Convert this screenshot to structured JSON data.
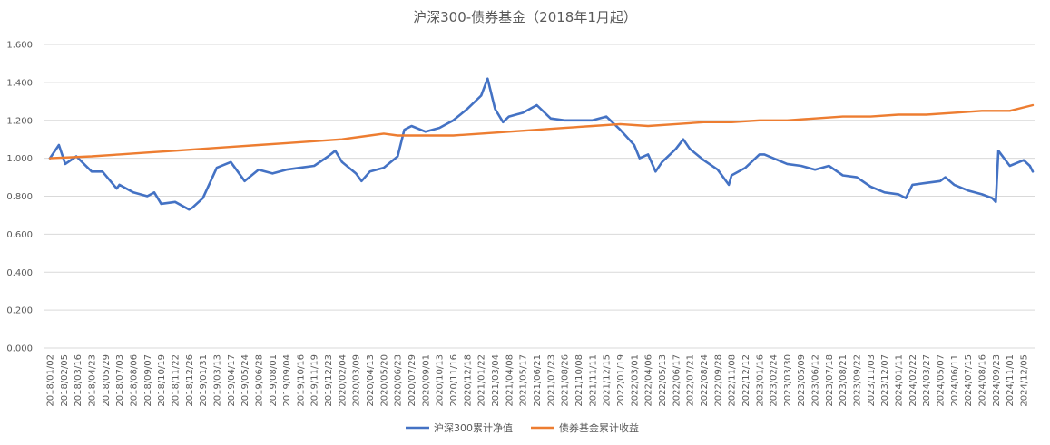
{
  "chart_data": {
    "type": "line",
    "title": "沪深300-债券基金（2018年1月起）",
    "xlabel": "",
    "ylabel": "",
    "ylim": [
      0,
      1.6
    ],
    "yticks": [
      0.0,
      0.2,
      0.4,
      0.6,
      0.8,
      1.0,
      1.2,
      1.4,
      1.6
    ],
    "ytick_labels": [
      "0.000",
      "0.200",
      "0.400",
      "0.600",
      "0.800",
      "1.000",
      "1.200",
      "1.400",
      "1.600"
    ],
    "grid": true,
    "legend_position": "bottom",
    "xtick_labels": [
      "2018/01/02",
      "2018/02/05",
      "2018/03/16",
      "2018/04/23",
      "2018/05/29",
      "2018/07/03",
      "2018/08/06",
      "2018/09/07",
      "2018/10/19",
      "2018/11/22",
      "2018/12/26",
      "2019/01/31",
      "2019/03/13",
      "2019/04/17",
      "2019/05/24",
      "2019/06/28",
      "2019/08/01",
      "2019/09/04",
      "2019/10/16",
      "2019/11/19",
      "2019/12/23",
      "2020/02/04",
      "2020/03/09",
      "2020/04/13",
      "2020/05/20",
      "2020/06/23",
      "2020/07/29",
      "2020/09/01",
      "2020/10/13",
      "2020/11/16",
      "2020/12/18",
      "2021/01/22",
      "2021/03/04",
      "2021/04/08",
      "2021/05/17",
      "2021/06/21",
      "2021/07/23",
      "2021/08/26",
      "2021/10/08",
      "2021/11/11",
      "2021/12/15",
      "2022/01/19",
      "2022/03/01",
      "2022/04/06",
      "2022/05/13",
      "2022/06/17",
      "2022/07/21",
      "2022/08/24",
      "2022/09/28",
      "2022/11/08",
      "2022/12/12",
      "2023/01/16",
      "2023/02/24",
      "2023/03/30",
      "2023/05/09",
      "2023/06/12",
      "2023/07/18",
      "2023/08/21",
      "2023/09/22",
      "2023/11/03",
      "2023/12/07",
      "2024/01/11",
      "2024/02/22",
      "2024/03/27",
      "2024/05/07",
      "2024/06/11",
      "2024/07/15",
      "2024/08/16",
      "2024/09/23",
      "2024/11/01",
      "2024/12/05"
    ],
    "series": [
      {
        "name": "沪深300累计净值",
        "color": "#4472c4",
        "x": [
          "2018/01/02",
          "2018/01/24",
          "2018/02/09",
          "2018/03/12",
          "2018/04/23",
          "2018/05/21",
          "2018/06/26",
          "2018/07/03",
          "2018/08/06",
          "2018/09/07",
          "2018/09/28",
          "2018/10/19",
          "2018/11/22",
          "2018/12/26",
          "2019/01/04",
          "2019/01/31",
          "2019/03/13",
          "2019/04/17",
          "2019/05/24",
          "2019/06/28",
          "2019/08/01",
          "2019/09/04",
          "2019/10/16",
          "2019/11/19",
          "2019/12/23",
          "2020/01/14",
          "2020/02/04",
          "2020/03/09",
          "2020/03/23",
          "2020/04/13",
          "2020/05/20",
          "2020/06/23",
          "2020/07/10",
          "2020/07/29",
          "2020/09/01",
          "2020/10/13",
          "2020/11/16",
          "2020/12/18",
          "2021/01/22",
          "2021/02/10",
          "2021/03/04",
          "2021/03/24",
          "2021/04/08",
          "2021/05/17",
          "2021/06/21",
          "2021/07/23",
          "2021/08/26",
          "2021/10/08",
          "2021/11/11",
          "2021/12/15",
          "2022/01/19",
          "2022/03/01",
          "2022/03/15",
          "2022/04/06",
          "2022/04/26",
          "2022/05/13",
          "2022/06/17",
          "2022/07/05",
          "2022/07/21",
          "2022/08/24",
          "2022/09/28",
          "2022/10/31",
          "2022/11/08",
          "2022/12/12",
          "2023/01/16",
          "2023/01/30",
          "2023/02/24",
          "2023/03/30",
          "2023/05/09",
          "2023/06/12",
          "2023/07/18",
          "2023/08/21",
          "2023/09/22",
          "2023/11/03",
          "2023/12/07",
          "2024/01/11",
          "2024/02/02",
          "2024/02/22",
          "2024/03/27",
          "2024/05/07",
          "2024/05/20",
          "2024/06/11",
          "2024/07/15",
          "2024/08/16",
          "2024/09/13",
          "2024/09/23",
          "2024/09/30",
          "2024/11/01",
          "2024/12/05",
          "2024/12/20",
          "2024/12/31"
        ],
        "values": [
          1.0,
          1.07,
          0.97,
          1.01,
          0.93,
          0.93,
          0.84,
          0.86,
          0.82,
          0.8,
          0.82,
          0.76,
          0.77,
          0.73,
          0.74,
          0.79,
          0.95,
          0.98,
          0.88,
          0.94,
          0.92,
          0.94,
          0.95,
          0.96,
          1.01,
          1.04,
          0.98,
          0.92,
          0.88,
          0.93,
          0.95,
          1.01,
          1.15,
          1.17,
          1.14,
          1.16,
          1.2,
          1.26,
          1.33,
          1.42,
          1.26,
          1.19,
          1.22,
          1.24,
          1.28,
          1.21,
          1.2,
          1.2,
          1.2,
          1.22,
          1.15,
          1.07,
          1.0,
          1.02,
          0.93,
          0.98,
          1.05,
          1.1,
          1.05,
          0.99,
          0.94,
          0.86,
          0.91,
          0.95,
          1.02,
          1.02,
          1.0,
          0.97,
          0.96,
          0.94,
          0.96,
          0.91,
          0.9,
          0.85,
          0.82,
          0.81,
          0.79,
          0.86,
          0.87,
          0.88,
          0.9,
          0.86,
          0.83,
          0.81,
          0.79,
          0.77,
          1.04,
          0.96,
          0.99,
          0.96,
          0.93
        ]
      },
      {
        "name": "债券基金累计收益",
        "color": "#ed7d31",
        "x": [
          "2018/01/02",
          "2018/04/23",
          "2018/07/03",
          "2018/09/07",
          "2018/11/22",
          "2019/01/31",
          "2019/04/17",
          "2019/06/28",
          "2019/09/04",
          "2019/11/19",
          "2020/02/04",
          "2020/04/13",
          "2020/05/20",
          "2020/06/23",
          "2020/09/01",
          "2020/11/16",
          "2021/01/22",
          "2021/04/08",
          "2021/06/21",
          "2021/08/26",
          "2021/11/11",
          "2022/01/19",
          "2022/04/06",
          "2022/06/17",
          "2022/08/24",
          "2022/11/08",
          "2023/01/16",
          "2023/03/30",
          "2023/06/12",
          "2023/08/21",
          "2023/11/03",
          "2024/01/11",
          "2024/03/27",
          "2024/06/11",
          "2024/08/16",
          "2024/11/01",
          "2024/12/31"
        ],
        "values": [
          1.0,
          1.01,
          1.02,
          1.03,
          1.04,
          1.05,
          1.06,
          1.07,
          1.08,
          1.09,
          1.1,
          1.12,
          1.13,
          1.12,
          1.12,
          1.12,
          1.13,
          1.14,
          1.15,
          1.16,
          1.17,
          1.18,
          1.17,
          1.18,
          1.19,
          1.19,
          1.2,
          1.2,
          1.21,
          1.22,
          1.22,
          1.23,
          1.23,
          1.24,
          1.25,
          1.25,
          1.28
        ]
      }
    ]
  }
}
